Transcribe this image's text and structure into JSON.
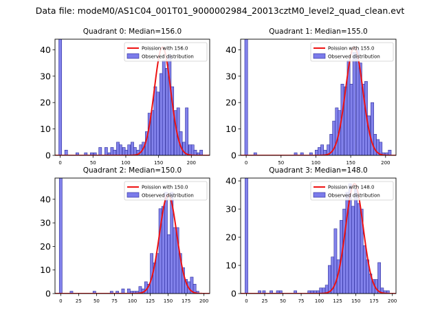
{
  "figure": {
    "suptitle": "Data file: modeM0/AS1C04_001T01_9000002984_20013cztM0_level2_quad_clean.evt"
  },
  "colors": {
    "hist_fill": "#7b7bea",
    "hist_edge": "#2b2b9a",
    "poisson_line": "#ee1111"
  },
  "chart_data": [
    {
      "type": "bar",
      "title": "Quadrant 0: Median=156.0",
      "legend": [
        "Poission with 156.0",
        "Observed distribution"
      ],
      "legend_loc": "top-right",
      "xlim": [
        -8,
        228
      ],
      "ylim": [
        0,
        44
      ],
      "xticks": [
        0,
        50,
        100,
        150,
        200
      ],
      "yticks": [
        0,
        10,
        20,
        30,
        40
      ],
      "mean": 156,
      "peak": 41,
      "sigma": 12.5,
      "bin_width": 4.4,
      "bins": [
        [
          0,
          44
        ],
        [
          9,
          2
        ],
        [
          17,
          0
        ],
        [
          26,
          1
        ],
        [
          35,
          0
        ],
        [
          39,
          1
        ],
        [
          44,
          0
        ],
        [
          48,
          1
        ],
        [
          53,
          1
        ],
        [
          57,
          0
        ],
        [
          61,
          3
        ],
        [
          66,
          0
        ],
        [
          70,
          3
        ],
        [
          75,
          1
        ],
        [
          79,
          3
        ],
        [
          83,
          2
        ],
        [
          88,
          5
        ],
        [
          92,
          4
        ],
        [
          97,
          3
        ],
        [
          101,
          2
        ],
        [
          105,
          4
        ],
        [
          110,
          5
        ],
        [
          114,
          3
        ],
        [
          119,
          2
        ],
        [
          123,
          4
        ],
        [
          127,
          5
        ],
        [
          132,
          9
        ],
        [
          136,
          16
        ],
        [
          141,
          17
        ],
        [
          145,
          26
        ],
        [
          149,
          24
        ],
        [
          154,
          31
        ],
        [
          158,
          36
        ],
        [
          163,
          33
        ],
        [
          167,
          38
        ],
        [
          171,
          26
        ],
        [
          176,
          17
        ],
        [
          180,
          18
        ],
        [
          184,
          9
        ],
        [
          189,
          5
        ],
        [
          193,
          18
        ],
        [
          198,
          4
        ],
        [
          202,
          4
        ],
        [
          206,
          2
        ],
        [
          211,
          1
        ],
        [
          215,
          2
        ]
      ]
    },
    {
      "type": "bar",
      "title": "Quadrant 1: Median=155.0",
      "legend": [
        "Poission with 155.0",
        "Observed distribution"
      ],
      "legend_loc": "top-right",
      "xlim": [
        -8,
        215
      ],
      "ylim": [
        0,
        44
      ],
      "xticks": [
        0,
        50,
        100,
        150,
        200
      ],
      "yticks": [
        0,
        10,
        20,
        30,
        40
      ],
      "mean": 155,
      "peak": 41,
      "sigma": 12.4,
      "bin_width": 4.2,
      "bins": [
        [
          0,
          44
        ],
        [
          13,
          1
        ],
        [
          71,
          1
        ],
        [
          80,
          1
        ],
        [
          93,
          1
        ],
        [
          101,
          2
        ],
        [
          105,
          3
        ],
        [
          109,
          4
        ],
        [
          113,
          2
        ],
        [
          118,
          4
        ],
        [
          122,
          8
        ],
        [
          126,
          13
        ],
        [
          130,
          18
        ],
        [
          134,
          17
        ],
        [
          138,
          27
        ],
        [
          143,
          26
        ],
        [
          147,
          36
        ],
        [
          151,
          27
        ],
        [
          155,
          39
        ],
        [
          160,
          40
        ],
        [
          164,
          35
        ],
        [
          168,
          27
        ],
        [
          172,
          28
        ],
        [
          176,
          15
        ],
        [
          181,
          20
        ],
        [
          185,
          8
        ],
        [
          189,
          6
        ],
        [
          193,
          5
        ],
        [
          197,
          1
        ],
        [
          202,
          1
        ],
        [
          206,
          2
        ]
      ]
    },
    {
      "type": "bar",
      "title": "Quadrant 2: Median=150.0",
      "legend": [
        "Poission with 150.0",
        "Observed distribution"
      ],
      "legend_loc": "top-right",
      "xlim": [
        -8,
        208
      ],
      "ylim": [
        0,
        49
      ],
      "xticks": [
        0,
        25,
        50,
        75,
        100,
        125,
        150,
        175,
        200
      ],
      "yticks": [
        0,
        10,
        20,
        30,
        40
      ],
      "mean": 150,
      "peak": 42,
      "sigma": 12,
      "bin_width": 4.0,
      "bins": [
        [
          0,
          49
        ],
        [
          15,
          1
        ],
        [
          47,
          1
        ],
        [
          71,
          1
        ],
        [
          79,
          1
        ],
        [
          87,
          2
        ],
        [
          95,
          2
        ],
        [
          99,
          1
        ],
        [
          103,
          1
        ],
        [
          107,
          1
        ],
        [
          111,
          3
        ],
        [
          115,
          2
        ],
        [
          119,
          5
        ],
        [
          123,
          4
        ],
        [
          127,
          17
        ],
        [
          131,
          13
        ],
        [
          135,
          17
        ],
        [
          139,
          36
        ],
        [
          143,
          37
        ],
        [
          147,
          43
        ],
        [
          151,
          25
        ],
        [
          155,
          43
        ],
        [
          159,
          28
        ],
        [
          163,
          28
        ],
        [
          167,
          17
        ],
        [
          171,
          11
        ],
        [
          175,
          6
        ],
        [
          179,
          5
        ],
        [
          183,
          7
        ],
        [
          187,
          4
        ],
        [
          191,
          1
        ]
      ]
    },
    {
      "type": "bar",
      "title": "Quadrant 3: Median=148.0",
      "legend": [
        "Poission with 148.0",
        "Observed distribution"
      ],
      "legend_loc": "top-right",
      "xlim": [
        -8,
        205
      ],
      "ylim": [
        0,
        41
      ],
      "xticks": [
        0,
        25,
        50,
        75,
        100,
        125,
        150,
        175,
        200
      ],
      "yticks": [
        0,
        10,
        20,
        30,
        40
      ],
      "mean": 148,
      "peak": 39,
      "sigma": 12,
      "bin_width": 3.9,
      "bins": [
        [
          0,
          41
        ],
        [
          18,
          1
        ],
        [
          24,
          1
        ],
        [
          34,
          1
        ],
        [
          43,
          1
        ],
        [
          47,
          1
        ],
        [
          67,
          1
        ],
        [
          86,
          1
        ],
        [
          90,
          1
        ],
        [
          94,
          1
        ],
        [
          98,
          1
        ],
        [
          102,
          2
        ],
        [
          106,
          2
        ],
        [
          110,
          3
        ],
        [
          114,
          10
        ],
        [
          118,
          13
        ],
        [
          122,
          23
        ],
        [
          126,
          12
        ],
        [
          130,
          26
        ],
        [
          134,
          30
        ],
        [
          138,
          36
        ],
        [
          142,
          39
        ],
        [
          146,
          31
        ],
        [
          150,
          37
        ],
        [
          154,
          32
        ],
        [
          158,
          30
        ],
        [
          162,
          17
        ],
        [
          166,
          12
        ],
        [
          170,
          7
        ],
        [
          174,
          5
        ],
        [
          178,
          5
        ],
        [
          182,
          11
        ],
        [
          186,
          2
        ],
        [
          190,
          1
        ],
        [
          194,
          1
        ]
      ]
    }
  ]
}
